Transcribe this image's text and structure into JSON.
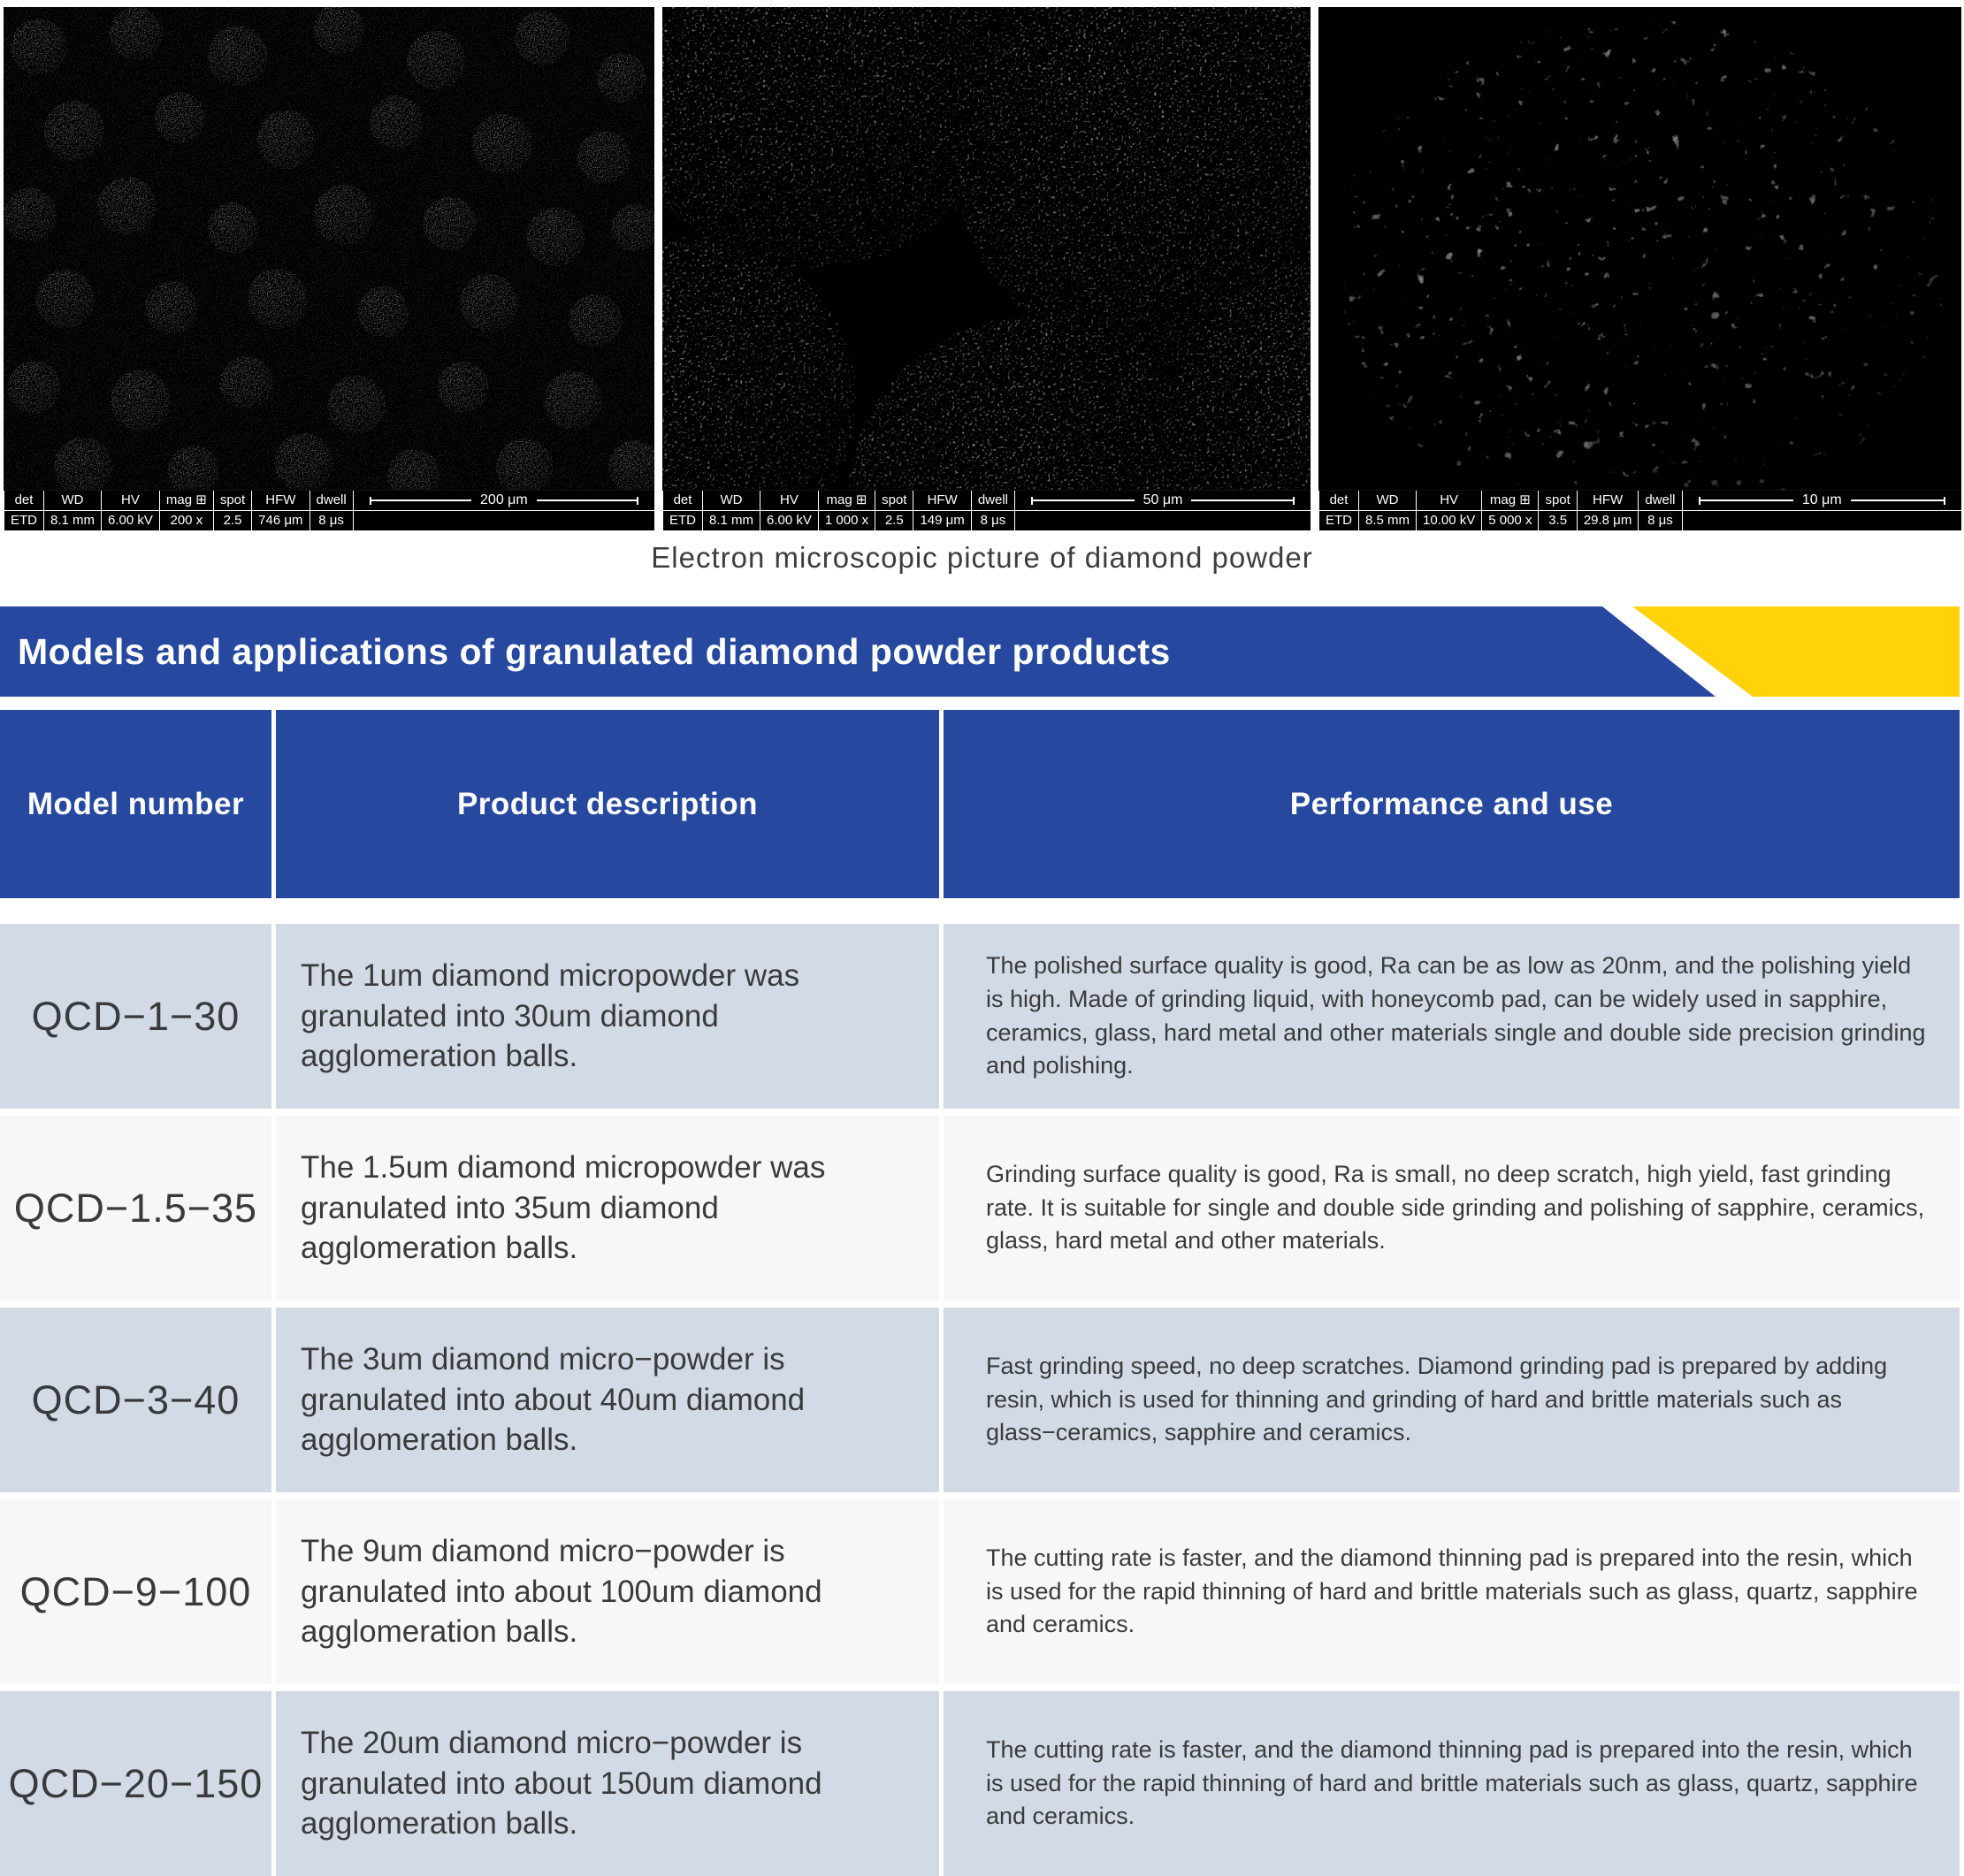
{
  "sem": {
    "field_labels": [
      "det",
      "WD",
      "HV",
      "mag ⊞",
      "spot",
      "HFW",
      "dwell"
    ],
    "panels": [
      {
        "values": [
          "ETD",
          "8.1 mm",
          "6.00 kV",
          "200 x",
          "2.5",
          "746 μm",
          "8 μs"
        ],
        "scale": "200 μm"
      },
      {
        "values": [
          "ETD",
          "8.1 mm",
          "6.00 kV",
          "1 000 x",
          "2.5",
          "149 μm",
          "8 μs"
        ],
        "scale": "50 μm"
      },
      {
        "values": [
          "ETD",
          "8.5 mm",
          "10.00 kV",
          "5 000 x",
          "3.5",
          "29.8 μm",
          "8 μs"
        ],
        "scale": "10 μm"
      }
    ]
  },
  "caption": "Electron microscopic picture of diamond powder",
  "banner": {
    "title": "Models and applications of granulated diamond powder products",
    "blue": "#26489e",
    "yellow": "#ffd20a"
  },
  "table": {
    "headers": [
      "Model number",
      "Product description",
      "Performance and use"
    ],
    "rows": [
      {
        "model": "QCD−1−30",
        "description": "The 1um diamond micropowder was granulated into 30um diamond agglomeration balls.",
        "performance": "The polished surface quality is good, Ra can be as low as 20nm, and the polishing yield is high. Made of grinding liquid, with honeycomb pad, can be widely used in sapphire, ceramics, glass, hard metal and other materials single and double side precision grinding and polishing."
      },
      {
        "model": "QCD−1.5−35",
        "description": "The 1.5um diamond micropowder was granulated into 35um diamond agglomeration balls.",
        "performance": "Grinding surface quality is good, Ra is small, no deep scratch, high yield, fast grinding rate. It is suitable for single and double side grinding and polishing of sapphire, ceramics, glass, hard metal and other materials."
      },
      {
        "model": "QCD−3−40",
        "description": "The 3um diamond micro−powder is granulated into about 40um diamond agglomeration balls.",
        "performance": "Fast grinding speed, no deep scratches. Diamond grinding pad is prepared by adding resin, which is used for thinning and grinding of hard and brittle materials such as glass−ceramics, sapphire and ceramics."
      },
      {
        "model": "QCD−9−100",
        "description": "The 9um diamond micro−powder is granulated into about 100um diamond agglomeration balls.",
        "performance": "The cutting rate is faster, and the diamond thinning pad is prepared into the resin, which is used for the rapid thinning of hard and brittle materials such as glass, quartz, sapphire and ceramics."
      },
      {
        "model": "QCD−20−150",
        "description": "The 20um diamond micro−powder is granulated into about 150um diamond agglomeration balls.",
        "performance": "The cutting rate is faster, and the diamond thinning pad is prepared into the resin, which is used for the rapid thinning of hard and brittle materials such as glass, quartz, sapphire and ceramics."
      }
    ]
  }
}
